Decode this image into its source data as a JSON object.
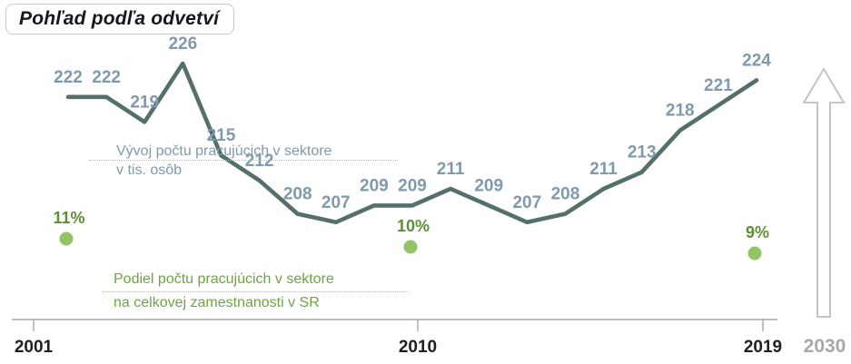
{
  "title": "Pohľad podľa odvetví",
  "annotations": {
    "trend": {
      "line1": "Vývoj počtu pracujúcich v sektore",
      "line2": "v tis. osôb"
    },
    "share": {
      "line1": "Podiel počtu pracujúcich v sektore",
      "line2": "na celkovej zamestnanosti v SR"
    }
  },
  "axis": {
    "ticks": [
      "2001",
      "2010",
      "2019"
    ],
    "tick_years": [
      2001,
      2010,
      2019
    ],
    "future_label": "2030"
  },
  "chart_data": {
    "type": "line",
    "title": "Vývoj počtu pracujúcich v sektore v tis. osôb",
    "x": [
      2001,
      2002,
      2003,
      2004,
      2005,
      2006,
      2007,
      2008,
      2009,
      2010,
      2011,
      2012,
      2013,
      2014,
      2015,
      2016,
      2017,
      2018,
      2019
    ],
    "series": [
      {
        "name": "Vývoj počtu pracujúcich v sektore v tis. osôb",
        "values": [
          222,
          222,
          219,
          226,
          215,
          212,
          208,
          207,
          209,
          209,
          211,
          209,
          207,
          208,
          211,
          213,
          218,
          221,
          224
        ]
      }
    ],
    "share_series": {
      "name": "Podiel počtu pracujúcich v sektore na celkovej zamestnanosti v SR",
      "points": [
        {
          "year": 2001,
          "value": "11%"
        },
        {
          "year": 2010,
          "value": "10%"
        },
        {
          "year": 2019,
          "value": "9%"
        }
      ]
    },
    "xlabel": "",
    "ylabel": "tis. osôb",
    "grid": false,
    "legend_position": "inline-annotations"
  },
  "colors": {
    "line": "#546f6c",
    "value_label": "#7f9aab",
    "dot": "#92c465",
    "pct_label": "#5e8f33",
    "axis": "#a6a6a6",
    "axis_label": "#1f1f1f",
    "arrow": "#c4c4c4"
  }
}
